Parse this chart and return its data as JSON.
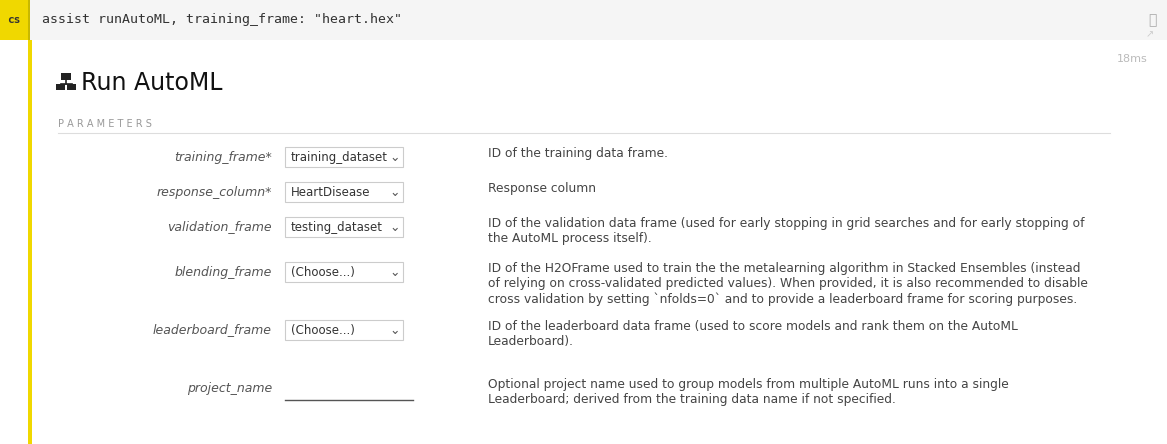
{
  "bg_color": "#f5f5f5",
  "white": "#ffffff",
  "dark_text": "#333333",
  "light_gray": "#e8e8e8",
  "border_gray": "#cccccc",
  "label_gray": "#999999",
  "yellow_bright": "#f0d000",
  "cs_bg": "#f0d800",
  "cs_text": "#333333",
  "code_text": "#333333",
  "params_label_color": "#999999",
  "italic_color": "#555555",
  "desc_color": "#444444",
  "ms_color": "#bbbbbb",
  "left_stripe_color": "#f0d800",
  "header_code": "assist runAutoML, training_frame: \"heart.hex\"",
  "title": "Run AutoML",
  "params_label": "P A R A M E T E R S",
  "ms_text": "18ms",
  "rows": [
    {
      "param": "training_frame*",
      "dropdown_text": "training_dataset",
      "has_dropdown": true,
      "desc": "ID of the training data frame."
    },
    {
      "param": "response_column*",
      "dropdown_text": "HeartDisease",
      "has_dropdown": true,
      "desc": "Response column"
    },
    {
      "param": "validation_frame",
      "dropdown_text": "testing_dataset",
      "has_dropdown": true,
      "desc": "ID of the validation data frame (used for early stopping in grid searches and for early stopping of\nthe AutoML process itself)."
    },
    {
      "param": "blending_frame",
      "dropdown_text": "(Choose...)",
      "has_dropdown": true,
      "desc": "ID of the H2OFrame used to train the the metalearning algorithm in Stacked Ensembles (instead\nof relying on cross-validated predicted values). When provided, it is also recommended to disable\ncross validation by setting `nfolds=0` and to provide a leaderboard frame for scoring purposes."
    },
    {
      "param": "leaderboard_frame",
      "dropdown_text": "(Choose...)",
      "has_dropdown": true,
      "desc": "ID of the leaderboard data frame (used to score models and rank them on the AutoML\nLeaderboard)."
    },
    {
      "param": "project_name",
      "dropdown_text": null,
      "has_dropdown": false,
      "desc": "Optional project name used to group models from multiple AutoML runs into a single\nLeaderboard; derived from the training data name if not specified."
    }
  ]
}
